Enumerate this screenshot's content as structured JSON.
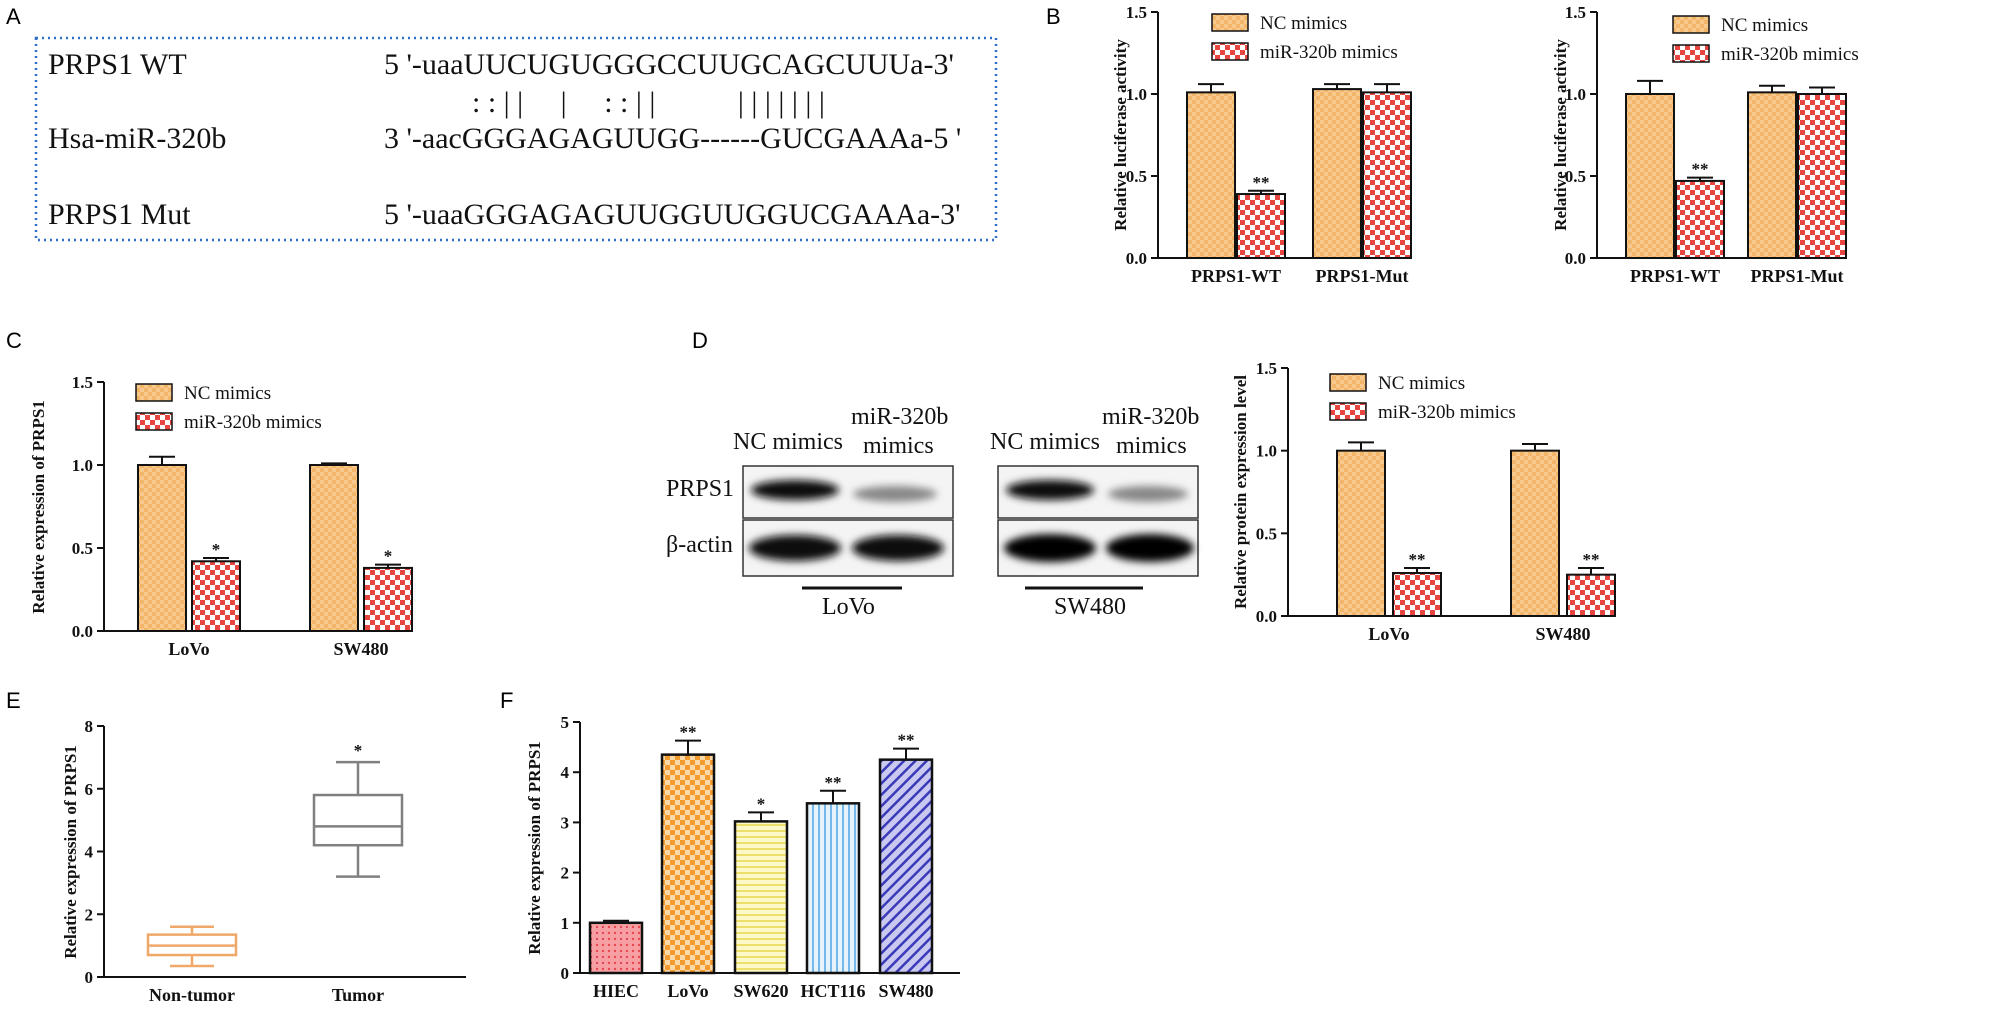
{
  "panel_letters": [
    "A",
    "B",
    "C",
    "D",
    "E",
    "F"
  ],
  "colors": {
    "nc": "#f3b56a",
    "nc_light": "#fbe3bf",
    "mir": "#e6463f",
    "mir_light": "#ffffff",
    "hiec": "#f2626a",
    "lovo": "#f39b2e",
    "sw620": "#f5e96a",
    "hct116": "#5aa9e6",
    "sw480": "#3a3ab8",
    "box_nontumor": "#f0a868",
    "box_tumor": "#808080",
    "dotted_border": "#2f6fc4"
  },
  "panel_a": {
    "rows": [
      {
        "name": "PRPS1 WT",
        "seq": "5 '-uaaUUCUGUGGGCCUUGCAGCUUUa-3'"
      },
      {
        "name": "",
        "seq": ": : | |     |     : : | |           | | | | | | |"
      },
      {
        "name": "Hsa-miR-320b",
        "seq": "3 '-aacGGGAGAGUUGG------GUCGAAAa-5 '"
      },
      {
        "name": "PRPS1 Mut",
        "seq": "5 '-uaaGGGAGAGUUGGUUGGUCGAAAa-3'"
      }
    ]
  },
  "panel_d_blot": {
    "band_labels": [
      "PRPS1",
      "β-actin"
    ],
    "lanes_lovo": [
      "NC mimics",
      "miR-320b mimics"
    ],
    "lanes_sw480": [
      "NC mimics",
      "miR-320b mimics"
    ],
    "lane_label_lines": [
      [
        "NC mimics"
      ],
      [
        "miR-320b",
        "mimics"
      ]
    ],
    "cell_lines": [
      "LoVo",
      "SW480"
    ]
  },
  "chart_data": [
    {
      "id": "B1",
      "type": "bar",
      "categories": [
        "PRPS1-WT",
        "PRPS1-Mut"
      ],
      "series": [
        {
          "name": "NC mimics",
          "values": [
            1.01,
            1.03
          ],
          "errors": [
            0.05,
            0.03
          ]
        },
        {
          "name": "miR-320b mimics",
          "values": [
            0.39,
            1.01
          ],
          "errors": [
            0.02,
            0.05
          ]
        }
      ],
      "significance": [
        [
          "",
          ""
        ],
        [
          "**",
          ""
        ]
      ],
      "ylabel": "Relative luciferase activity",
      "ylim": [
        0,
        1.5
      ],
      "yticks": [
        "0.0",
        "0.5",
        "1.0",
        "1.5"
      ],
      "legend": "top-left"
    },
    {
      "id": "B2",
      "type": "bar",
      "categories": [
        "PRPS1-WT",
        "PRPS1-Mut"
      ],
      "series": [
        {
          "name": "NC mimics",
          "values": [
            1.0,
            1.01
          ],
          "errors": [
            0.08,
            0.04
          ]
        },
        {
          "name": "miR-320b mimics",
          "values": [
            0.47,
            1.0
          ],
          "errors": [
            0.02,
            0.04
          ]
        }
      ],
      "significance": [
        [
          "",
          ""
        ],
        [
          "**",
          ""
        ]
      ],
      "ylabel": "Relative luciferase activity",
      "ylim": [
        0,
        1.5
      ],
      "yticks": [
        "0.0",
        "0.5",
        "1.0",
        "1.5"
      ],
      "legend": "top-left"
    },
    {
      "id": "C",
      "type": "bar",
      "categories": [
        "LoVo",
        "SW480"
      ],
      "series": [
        {
          "name": "NC mimics",
          "values": [
            1.0,
            1.0
          ],
          "errors": [
            0.05,
            0.01
          ]
        },
        {
          "name": "miR-320b mimics",
          "values": [
            0.42,
            0.38
          ],
          "errors": [
            0.02,
            0.02
          ]
        }
      ],
      "significance": [
        [
          "",
          ""
        ],
        [
          "*",
          "*"
        ]
      ],
      "ylabel": "Relative expression of PRPS1",
      "ylim": [
        0,
        1.5
      ],
      "yticks": [
        "0.0",
        "0.5",
        "1.0",
        "1.5"
      ],
      "legend": "top-left"
    },
    {
      "id": "D",
      "type": "bar",
      "categories": [
        "LoVo",
        "SW480"
      ],
      "series": [
        {
          "name": "NC mimics",
          "values": [
            1.0,
            1.0
          ],
          "errors": [
            0.05,
            0.04
          ]
        },
        {
          "name": "miR-320b mimics",
          "values": [
            0.26,
            0.25
          ],
          "errors": [
            0.03,
            0.04
          ]
        }
      ],
      "significance": [
        [
          "",
          ""
        ],
        [
          "**",
          "**"
        ]
      ],
      "ylabel": "Relative protein expression level",
      "ylim": [
        0,
        1.5
      ],
      "yticks": [
        "0.0",
        "0.5",
        "1.0",
        "1.5"
      ],
      "legend": "top-left"
    },
    {
      "id": "E",
      "type": "box",
      "categories": [
        "Non-tumor",
        "Tumor"
      ],
      "boxes": [
        {
          "min": 0.35,
          "q1": 0.7,
          "median": 1.0,
          "q3": 1.35,
          "max": 1.6
        },
        {
          "min": 3.2,
          "q1": 4.2,
          "median": 4.8,
          "q3": 5.8,
          "max": 6.85
        }
      ],
      "significance": [
        "",
        "*"
      ],
      "ylabel": "Relative expression of PRPS1",
      "ylim": [
        0,
        8
      ],
      "yticks": [
        "0",
        "2",
        "4",
        "6",
        "8"
      ]
    },
    {
      "id": "F",
      "type": "bar",
      "categories": [
        "HIEC",
        "LoVo",
        "SW620",
        "HCT116",
        "SW480"
      ],
      "values": [
        1.0,
        4.35,
        3.02,
        3.38,
        4.25
      ],
      "errors": [
        0.04,
        0.28,
        0.18,
        0.25,
        0.22
      ],
      "significance": [
        "",
        "**",
        "*",
        "**",
        "**"
      ],
      "ylabel": "Relative expression of PRPS1",
      "ylim": [
        0,
        5
      ],
      "yticks": [
        "0",
        "1",
        "2",
        "3",
        "4",
        "5"
      ]
    }
  ]
}
